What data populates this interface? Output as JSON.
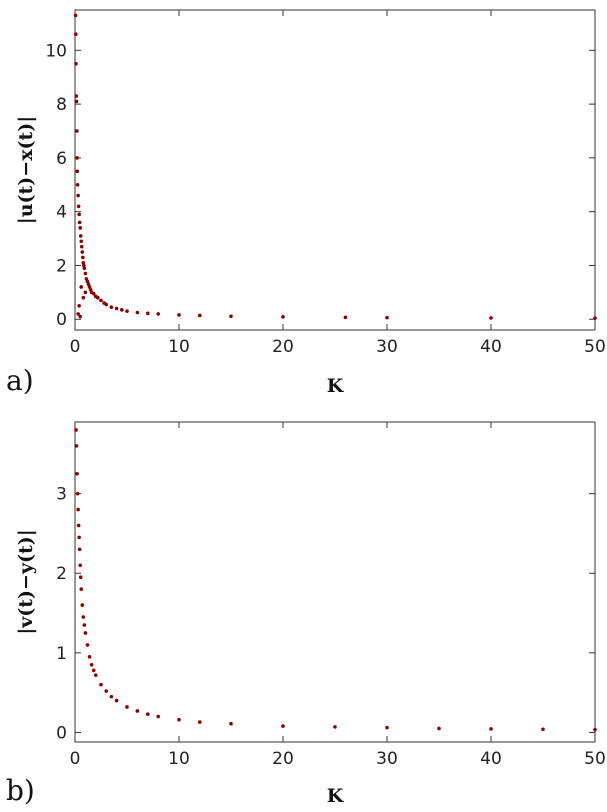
{
  "chart_data": [
    {
      "type": "scatter",
      "panel_label": "a)",
      "xlabel": "K",
      "ylabel": "|u(t)−x(t)|",
      "xlim": [
        0,
        50
      ],
      "ylim": [
        -0.4,
        11.5
      ],
      "xticks": [
        0,
        10,
        20,
        30,
        40,
        50
      ],
      "yticks": [
        0,
        2,
        4,
        6,
        8,
        10
      ],
      "grid": false,
      "color": "#8b0000",
      "series": [
        {
          "x": [
            0.05,
            0.08,
            0.1,
            0.12,
            0.15,
            0.18,
            0.2,
            0.22,
            0.25,
            0.3,
            0.3,
            0.35,
            0.4,
            0.4,
            0.45,
            0.5,
            0.5,
            0.55,
            0.6,
            0.6,
            0.65,
            0.7,
            0.75,
            0.8,
            0.8,
            0.85,
            0.9,
            1.0,
            1.0,
            1.1,
            1.2,
            1.3,
            1.4,
            1.5,
            1.6,
            1.8,
            2.0,
            2.2,
            2.5,
            2.8,
            3.0,
            3.5,
            4.0,
            4.5,
            5.0,
            6.0,
            7.0,
            8.0,
            10.0,
            12.0,
            15.0,
            20.0,
            26.0,
            30.0,
            40.0,
            50.0
          ],
          "y": [
            11.3,
            10.6,
            9.5,
            8.3,
            8.1,
            7.0,
            6.0,
            5.5,
            5.0,
            4.6,
            0.2,
            4.2,
            3.9,
            0.5,
            3.6,
            3.4,
            0.1,
            3.1,
            2.9,
            1.2,
            2.7,
            2.5,
            2.3,
            2.1,
            0.8,
            2.0,
            1.9,
            1.7,
            1.0,
            1.5,
            1.4,
            1.3,
            1.2,
            1.1,
            1.0,
            0.95,
            0.85,
            0.8,
            0.7,
            0.6,
            0.55,
            0.45,
            0.4,
            0.35,
            0.3,
            0.25,
            0.22,
            0.2,
            0.16,
            0.14,
            0.11,
            0.09,
            0.07,
            0.06,
            0.05,
            0.04
          ]
        }
      ]
    },
    {
      "type": "scatter",
      "panel_label": "b)",
      "xlabel": "K",
      "ylabel": "|v(t)−y(t)|",
      "xlim": [
        0,
        50
      ],
      "ylim": [
        -0.12,
        3.9
      ],
      "xticks": [
        0,
        10,
        20,
        30,
        40,
        50
      ],
      "yticks": [
        0,
        1,
        2,
        3
      ],
      "grid": false,
      "color": "#8b0000",
      "series": [
        {
          "x": [
            0.1,
            0.15,
            0.2,
            0.25,
            0.3,
            0.35,
            0.4,
            0.45,
            0.5,
            0.55,
            0.6,
            0.7,
            0.8,
            0.9,
            1.0,
            1.2,
            1.4,
            1.6,
            1.8,
            2.0,
            2.5,
            3.0,
            3.5,
            4.0,
            5.0,
            6.0,
            7.0,
            8.0,
            10.0,
            12.0,
            15.0,
            20.0,
            25.0,
            30.0,
            35.0,
            40.0,
            45.0,
            50.0
          ],
          "y": [
            3.8,
            3.6,
            3.25,
            3.0,
            2.8,
            2.6,
            2.45,
            2.3,
            2.1,
            1.95,
            1.8,
            1.6,
            1.45,
            1.35,
            1.25,
            1.1,
            0.95,
            0.85,
            0.78,
            0.72,
            0.6,
            0.52,
            0.45,
            0.4,
            0.32,
            0.27,
            0.23,
            0.2,
            0.16,
            0.13,
            0.11,
            0.08,
            0.07,
            0.06,
            0.05,
            0.045,
            0.04,
            0.035
          ]
        }
      ]
    }
  ]
}
